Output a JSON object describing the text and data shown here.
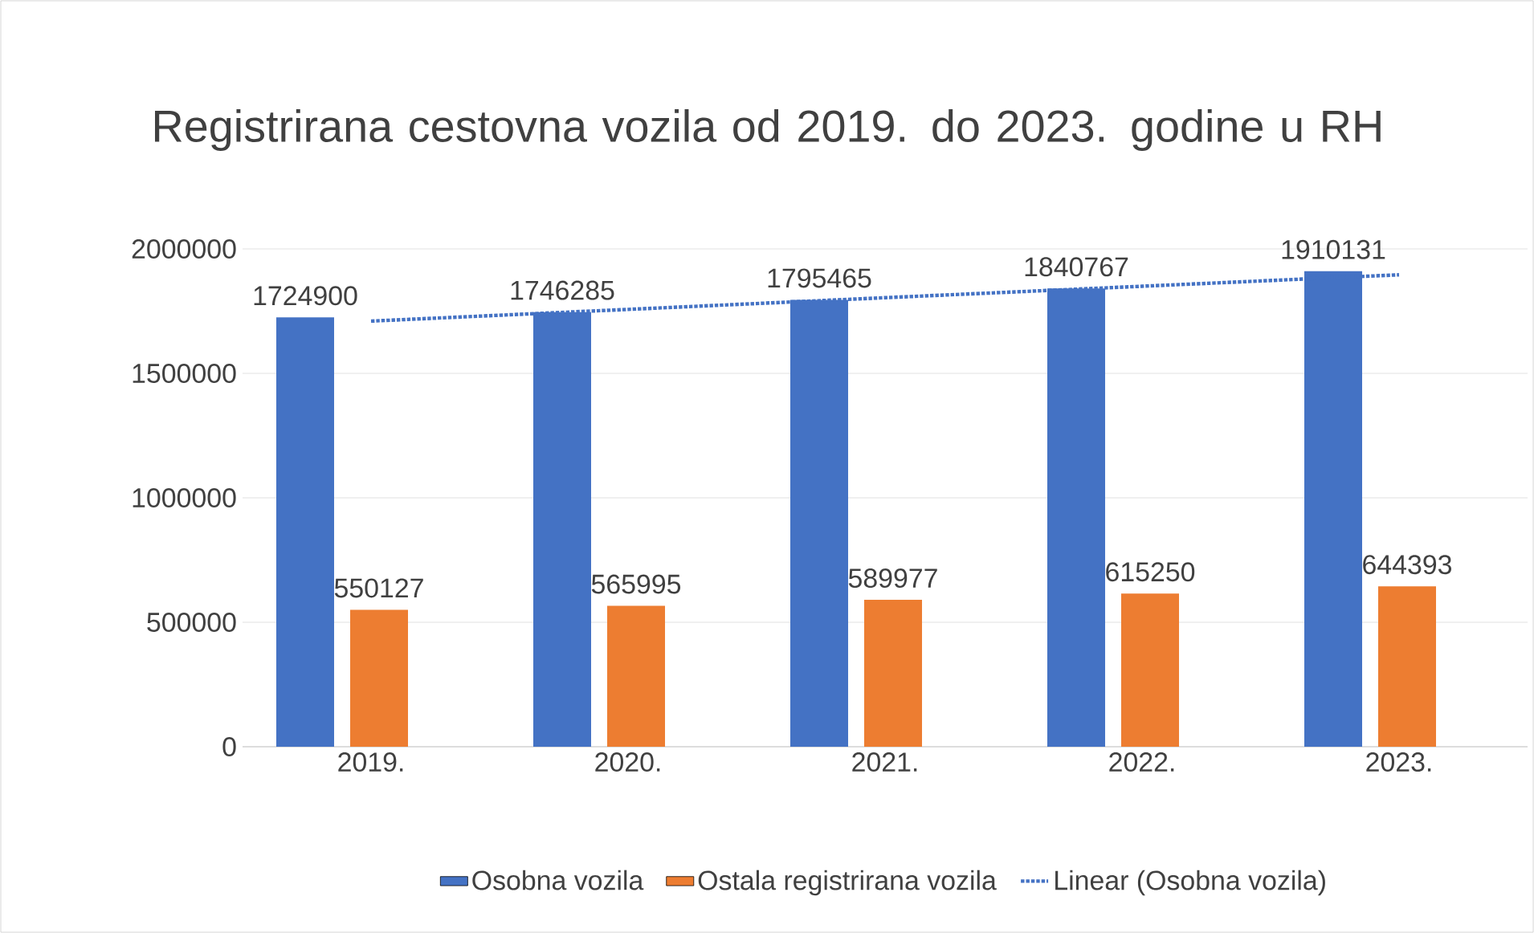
{
  "chart_data": {
    "type": "bar",
    "title": "Registrirana cestovna vozila od 2019. do 2023. godine u RH",
    "categories": [
      "2019.",
      "2020.",
      "2021.",
      "2022.",
      "2023."
    ],
    "series": [
      {
        "name": "Osobna vozila",
        "color": "#4472c4",
        "values": [
          1724900,
          1746285,
          1795465,
          1840767,
          1910131
        ],
        "value_labels": [
          "1724900",
          "1746285",
          "1795465",
          "1840767",
          "1910131"
        ]
      },
      {
        "name": "Ostala registrirana vozila",
        "color": "#ed7d31",
        "values": [
          550127,
          565995,
          589977,
          615250,
          644393
        ],
        "value_labels": [
          "550127",
          "565995",
          "589977",
          "615250",
          "644393"
        ]
      },
      {
        "name": "Linear (Osobna vozila)",
        "type": "line",
        "color": "#4472c4",
        "line_style": "dotted",
        "marker": "none",
        "values": [
          1710000,
          1757000,
          1804000,
          1850000,
          1896000
        ]
      }
    ],
    "ylim": [
      0,
      2000000
    ],
    "yticks": [
      0,
      500000,
      1000000,
      1500000,
      2000000
    ],
    "grid": "y",
    "legend": "bottom"
  }
}
